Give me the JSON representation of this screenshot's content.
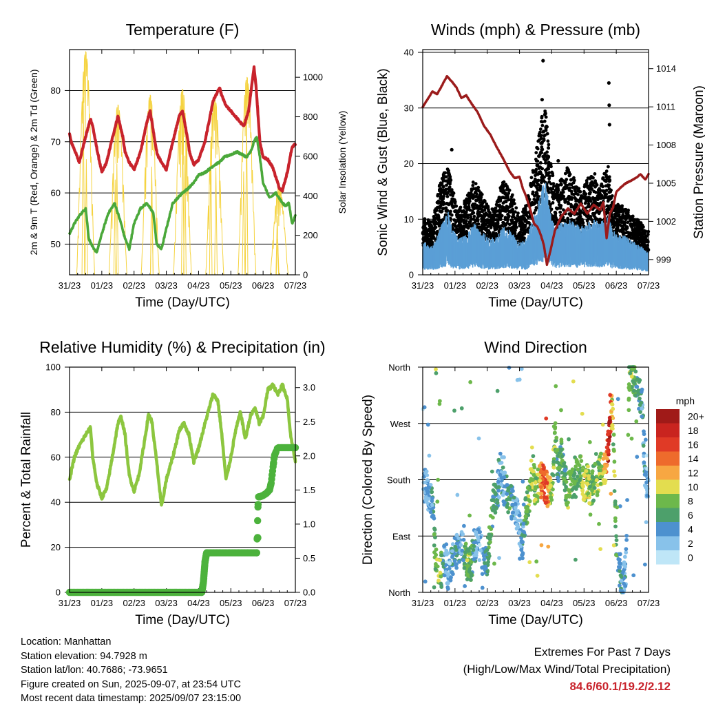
{
  "colors": {
    "temperature": "#c8232c",
    "dewpoint": "#4aa83a",
    "solar": "#f5d33f",
    "gust": "#000000",
    "wind": "#5b9fd6",
    "pressure": "#9b1b1b",
    "rh": "#8cc63f",
    "precip": "#4cb23c",
    "extremes_value": "#c8232c"
  },
  "x_ticks": [
    "31/23",
    "01/23",
    "02/23",
    "03/23",
    "04/23",
    "05/23",
    "06/23",
    "07/23"
  ],
  "chart_data": [
    {
      "type": "line",
      "id": "temperature",
      "title": "Temperature (F)",
      "xlabel": "Time (Day/UTC)",
      "ylabel": "2m & 9m T (Red, Orange) & 2m Td (Green)",
      "y2label": "Solar Insolation (Yellow)",
      "ylim": [
        44,
        88
      ],
      "y_ticks": [
        50,
        60,
        70,
        80
      ],
      "y2lim": [
        0,
        1140
      ],
      "y2_ticks": [
        0,
        200,
        400,
        600,
        800,
        1000
      ],
      "grid": true,
      "series": [
        {
          "name": "2m & 9m T",
          "axis": "left",
          "color": "#c8232c",
          "x": [
            0,
            0.05,
            0.15,
            0.3,
            0.5,
            0.65,
            0.72,
            0.85,
            1.0,
            1.15,
            1.3,
            1.5,
            1.65,
            1.72,
            1.85,
            2.0,
            2.2,
            2.4,
            2.5,
            2.65,
            2.72,
            2.85,
            3.0,
            3.2,
            3.4,
            3.5,
            3.65,
            3.72,
            3.85,
            4.0,
            4.2,
            4.45,
            4.65,
            4.72,
            4.85,
            5.0,
            5.2,
            5.4,
            5.55,
            5.65,
            5.72,
            5.78,
            5.9,
            6.0,
            6.15,
            6.3,
            6.5,
            6.6,
            6.75,
            6.9,
            7.0
          ],
          "y": [
            71.5,
            70,
            68.5,
            66,
            71,
            74.5,
            73,
            68.5,
            64,
            66,
            70,
            75,
            71,
            68,
            66,
            64.5,
            68,
            74,
            76,
            70,
            67.5,
            66,
            64.5,
            70,
            75,
            76,
            71,
            68,
            65.5,
            66.5,
            70,
            78,
            80.5,
            79,
            77,
            76,
            74.5,
            73,
            76,
            81,
            84.5,
            81,
            70,
            67,
            66.5,
            65,
            61,
            60.5,
            64,
            69,
            69.5
          ]
        },
        {
          "name": "2m Td",
          "axis": "left",
          "color": "#4aa83a",
          "x": [
            0,
            0.15,
            0.3,
            0.5,
            0.6,
            0.75,
            0.85,
            1.0,
            1.2,
            1.4,
            1.6,
            1.7,
            1.85,
            2.0,
            2.2,
            2.4,
            2.6,
            2.7,
            2.85,
            3.0,
            3.2,
            3.5,
            3.7,
            3.85,
            4.0,
            4.2,
            4.5,
            4.65,
            4.8,
            5.0,
            5.2,
            5.5,
            5.65,
            5.72,
            5.8,
            5.9,
            6.0,
            6.2,
            6.4,
            6.6,
            6.7,
            6.8,
            6.9,
            7.0
          ],
          "y": [
            52,
            54,
            55.5,
            57,
            51,
            49,
            48.5,
            52,
            56,
            58,
            54,
            51.5,
            49,
            54,
            57,
            58,
            56,
            50,
            49,
            53,
            58,
            60,
            61,
            62,
            63.5,
            64,
            65.5,
            66,
            67,
            67.5,
            68,
            67,
            68.5,
            70,
            71,
            67,
            62,
            59,
            60,
            58,
            57.5,
            58,
            54,
            55.5
          ]
        },
        {
          "name": "Solar Insolation",
          "axis": "right",
          "color": "#f5d33f",
          "days": [
            0.5,
            1.5,
            2.5,
            3.5,
            4.5,
            5.5,
            6.5
          ],
          "peaks": [
            1130,
            860,
            910,
            940,
            900,
            1000,
            450
          ]
        }
      ]
    },
    {
      "type": "scatter",
      "id": "winds",
      "title": "Winds (mph) & Pressure (mb)",
      "xlabel": "Time (Day/UTC)",
      "ylabel": "Sonic Wind & Gust (Blue, Black)",
      "y2label": "Station Pressure (Maroon)",
      "ylim": [
        0,
        40.5
      ],
      "y_ticks": [
        0,
        10,
        20,
        30,
        40
      ],
      "y2lim": [
        997.8,
        1015.5
      ],
      "y2_ticks": [
        999,
        1002,
        1005,
        1008,
        1011,
        1014
      ],
      "grid": true,
      "series": [
        {
          "name": "Gust",
          "axis": "left",
          "color": "#000000",
          "x": [
            0.1,
            0.3,
            0.55,
            0.8,
            0.9,
            1.1,
            1.35,
            1.6,
            1.8,
            2.1,
            2.3,
            2.5,
            2.75,
            3.0,
            3.2,
            3.5,
            3.65,
            3.75,
            3.85,
            3.95,
            4.1,
            4.3,
            4.5,
            4.7,
            4.9,
            5.1,
            5.3,
            5.5,
            5.65,
            5.75,
            5.85,
            6.0,
            6.2,
            6.4,
            6.6,
            6.8,
            6.95
          ],
          "y": [
            9,
            8,
            15,
            17.5,
            14,
            10,
            12,
            15,
            13,
            10,
            12,
            15,
            13,
            9,
            11,
            19,
            23,
            27,
            24,
            18,
            14,
            15,
            17,
            15,
            13,
            15,
            16,
            15,
            16,
            17,
            13,
            11,
            11,
            10,
            9,
            8,
            7
          ],
          "outliers_x": [
            3.73,
            3.7,
            5.77,
            5.78,
            5.79,
            0.9,
            4.2
          ],
          "outliers_y": [
            38.5,
            31.5,
            34.5,
            30.5,
            27,
            22.5,
            20.5
          ]
        },
        {
          "name": "Wind",
          "axis": "left",
          "color": "#5b9fd6",
          "x": [
            0.1,
            0.3,
            0.55,
            0.8,
            0.9,
            1.1,
            1.35,
            1.6,
            1.8,
            2.1,
            2.3,
            2.5,
            2.75,
            3.0,
            3.2,
            3.5,
            3.65,
            3.75,
            3.85,
            3.95,
            4.1,
            4.3,
            4.5,
            4.7,
            4.9,
            5.1,
            5.3,
            5.5,
            5.65,
            5.75,
            5.85,
            6.0,
            6.2,
            6.4,
            6.6,
            6.8,
            6.95
          ],
          "y": [
            4,
            3.5,
            6,
            8,
            6,
            4.5,
            5,
            6.5,
            5.5,
            4.5,
            5,
            6,
            5.5,
            4,
            4.5,
            8,
            10,
            12,
            11,
            8,
            6,
            6.5,
            7,
            6.5,
            6,
            6.5,
            7,
            6.5,
            7,
            7.5,
            6,
            5,
            5,
            4.5,
            4,
            3.5,
            3
          ]
        },
        {
          "name": "Station Pressure",
          "axis": "right",
          "color": "#9b1b1b",
          "x": [
            0,
            0.15,
            0.3,
            0.45,
            0.6,
            0.75,
            0.9,
            1.05,
            1.2,
            1.35,
            1.5,
            1.7,
            1.9,
            2.1,
            2.3,
            2.5,
            2.7,
            2.85,
            3.0,
            3.1,
            3.2,
            3.35,
            3.45,
            3.55,
            3.65,
            3.75,
            3.85,
            3.95,
            4.1,
            4.3,
            4.5,
            4.7,
            4.9,
            5.1,
            5.3,
            5.5,
            5.6,
            5.7,
            5.8,
            5.9,
            6.0,
            6.15,
            6.3,
            6.45,
            6.6,
            6.75,
            6.9,
            7.0
          ],
          "y": [
            1011.0,
            1011.6,
            1012.2,
            1012.0,
            1012.7,
            1013.4,
            1013.0,
            1012.5,
            1011.7,
            1011.9,
            1011.3,
            1010.6,
            1009.5,
            1008.8,
            1007.8,
            1006.9,
            1005.9,
            1005.4,
            1005.5,
            1004.6,
            1004.0,
            1002.8,
            1001.8,
            1001.6,
            1001.0,
            1000.2,
            998.6,
            999.6,
            1001.3,
            1002.4,
            1003.0,
            1002.6,
            1003.4,
            1002.6,
            1003.3,
            1002.9,
            1003.5,
            1000.7,
            1002.6,
            1003.1,
            1004.3,
            1004.7,
            1005.0,
            1005.2,
            1005.4,
            1005.7,
            1005.3,
            1005.7
          ]
        }
      ]
    },
    {
      "type": "line",
      "id": "humidity",
      "title": "Relative Humidity (%) & Precipitation (in)",
      "xlabel": "Time (Day/UTC)",
      "ylabel": "Percent & Total Rainfall",
      "ylim": [
        0,
        100
      ],
      "y_ticks": [
        0,
        20,
        40,
        60,
        80,
        100
      ],
      "y2lim": [
        0,
        3.3
      ],
      "y2_ticks": [
        "0.0",
        "0.5",
        "1.0",
        "1.5",
        "2.0",
        "2.5",
        "3.0"
      ],
      "grid": true,
      "series": [
        {
          "name": "Relative Humidity",
          "axis": "left",
          "color": "#8cc63f",
          "x": [
            0,
            0.15,
            0.3,
            0.5,
            0.65,
            0.72,
            0.85,
            1.0,
            1.15,
            1.3,
            1.5,
            1.6,
            1.72,
            1.85,
            2.0,
            2.15,
            2.3,
            2.45,
            2.55,
            2.7,
            2.85,
            3.0,
            3.2,
            3.4,
            3.55,
            3.7,
            3.85,
            4.0,
            4.2,
            4.45,
            4.6,
            4.72,
            4.85,
            5.0,
            5.15,
            5.3,
            5.45,
            5.6,
            5.75,
            5.88,
            6.0,
            6.15,
            6.3,
            6.45,
            6.6,
            6.75,
            6.85,
            7.0
          ],
          "y": [
            50,
            60,
            65,
            70,
            73,
            60,
            48,
            42,
            46,
            58,
            75,
            78,
            70,
            52,
            45,
            52,
            65,
            79,
            76,
            58,
            38,
            50,
            60,
            72,
            75,
            70,
            58,
            64,
            75,
            88,
            85,
            70,
            50,
            60,
            72,
            80,
            68,
            78,
            82,
            75,
            78,
            90,
            92,
            88,
            92,
            86,
            70,
            58
          ]
        },
        {
          "name": "Total Precipitation",
          "axis": "right",
          "color": "#4cb23c",
          "x": [
            0,
            4.1,
            4.15,
            4.2,
            4.25,
            5.8,
            5.82,
            5.84,
            5.86,
            5.9,
            6.0,
            6.1,
            6.2,
            6.25,
            6.3,
            6.35,
            6.45,
            6.6,
            7.0
          ],
          "y": [
            0,
            0,
            0.15,
            0.45,
            0.58,
            0.58,
            0.85,
            1.25,
            1.4,
            1.4,
            1.42,
            1.45,
            1.5,
            1.6,
            1.8,
            2.0,
            2.12,
            2.12,
            2.12
          ]
        }
      ]
    },
    {
      "type": "scatter",
      "id": "direction",
      "title": "Wind Direction",
      "xlabel": "Time (Day/UTC)",
      "ylabel": "Direction (Colored By Speed)",
      "y_ticks": [
        "North",
        "East",
        "South",
        "West",
        "North"
      ],
      "ylim": [
        0,
        360
      ],
      "grid": true,
      "legend": {
        "title": "mph",
        "labels": [
          "0",
          "2",
          "4",
          "6",
          "8",
          "10",
          "12",
          "14",
          "16",
          "18",
          "20+"
        ],
        "colors": [
          "#bfe6f7",
          "#88c2ea",
          "#4d91cf",
          "#4da06b",
          "#6db84b",
          "#e3dd4f",
          "#f7a742",
          "#ee6b2c",
          "#e03a26",
          "#c9241f",
          "#a01a18"
        ]
      },
      "series": [
        {
          "name": "Wind Direction",
          "x": [
            0.05,
            0.1,
            0.15,
            0.2,
            0.3,
            0.4,
            0.5,
            0.6,
            0.65,
            0.7,
            0.8,
            0.9,
            1.0,
            1.1,
            1.2,
            1.3,
            1.4,
            1.5,
            1.6,
            1.7,
            1.8,
            1.9,
            2.0,
            2.1,
            2.2,
            2.3,
            2.35,
            2.4,
            2.5,
            2.6,
            2.7,
            2.8,
            2.9,
            3.0,
            3.1,
            3.2,
            3.3,
            3.4,
            3.5,
            3.6,
            3.7,
            3.8,
            3.9,
            4.0,
            4.1,
            4.2,
            4.3,
            4.4,
            4.5,
            4.6,
            4.7,
            4.8,
            4.9,
            5.0,
            5.1,
            5.2,
            5.3,
            5.4,
            5.5,
            5.6,
            5.7,
            5.75,
            5.8,
            5.85,
            5.9,
            6.0,
            6.1,
            6.2,
            6.3,
            6.4,
            6.5,
            6.6,
            6.7,
            6.8,
            6.9,
            6.95
          ],
          "y": [
            170,
            175,
            160,
            150,
            140,
            60,
            40,
            35,
            50,
            45,
            30,
            55,
            60,
            70,
            80,
            60,
            40,
            45,
            75,
            80,
            70,
            45,
            50,
            100,
            150,
            160,
            170,
            200,
            170,
            160,
            150,
            140,
            130,
            100,
            80,
            130,
            150,
            200,
            160,
            175,
            180,
            170,
            160,
            155,
            250,
            200,
            220,
            180,
            160,
            180,
            170,
            190,
            200,
            170,
            180,
            150,
            190,
            180,
            200,
            195,
            210,
            240,
            270,
            290,
            280,
            60,
            30,
            20,
            40,
            340,
            350,
            340,
            320,
            300,
            180,
            170
          ],
          "speed": [
            2,
            3,
            4,
            3,
            4,
            8,
            9,
            6,
            5,
            3,
            2,
            4,
            5,
            4,
            3,
            6,
            8,
            6,
            4,
            3,
            2,
            4,
            6,
            8,
            6,
            5,
            4,
            3,
            4,
            5,
            6,
            4,
            3,
            3,
            4,
            7,
            8,
            9,
            8,
            10,
            14,
            16,
            12,
            8,
            8,
            6,
            7,
            6,
            8,
            9,
            7,
            6,
            8,
            10,
            9,
            8,
            7,
            8,
            9,
            10,
            12,
            18,
            20,
            10,
            9,
            6,
            5,
            4,
            3,
            8,
            7,
            6,
            5,
            4,
            3,
            2
          ]
        }
      ]
    }
  ],
  "station": {
    "location": "Location: Manhattan",
    "elevation": "Station elevation: 94.7928 m",
    "latlon": "Station lat/lon: 40.7686; -73.9651",
    "created": "Figure created on Sun, 2025-09-07, at 23:54 UTC",
    "recent": "Most recent data timestamp: 2025/09/07 23:15:00"
  },
  "extremes": {
    "title": "Extremes For Past 7 Days",
    "subtitle": "(High/Low/Max Wind/Total Precipitation)",
    "values": "84.6/60.1/19.2/2.12"
  }
}
